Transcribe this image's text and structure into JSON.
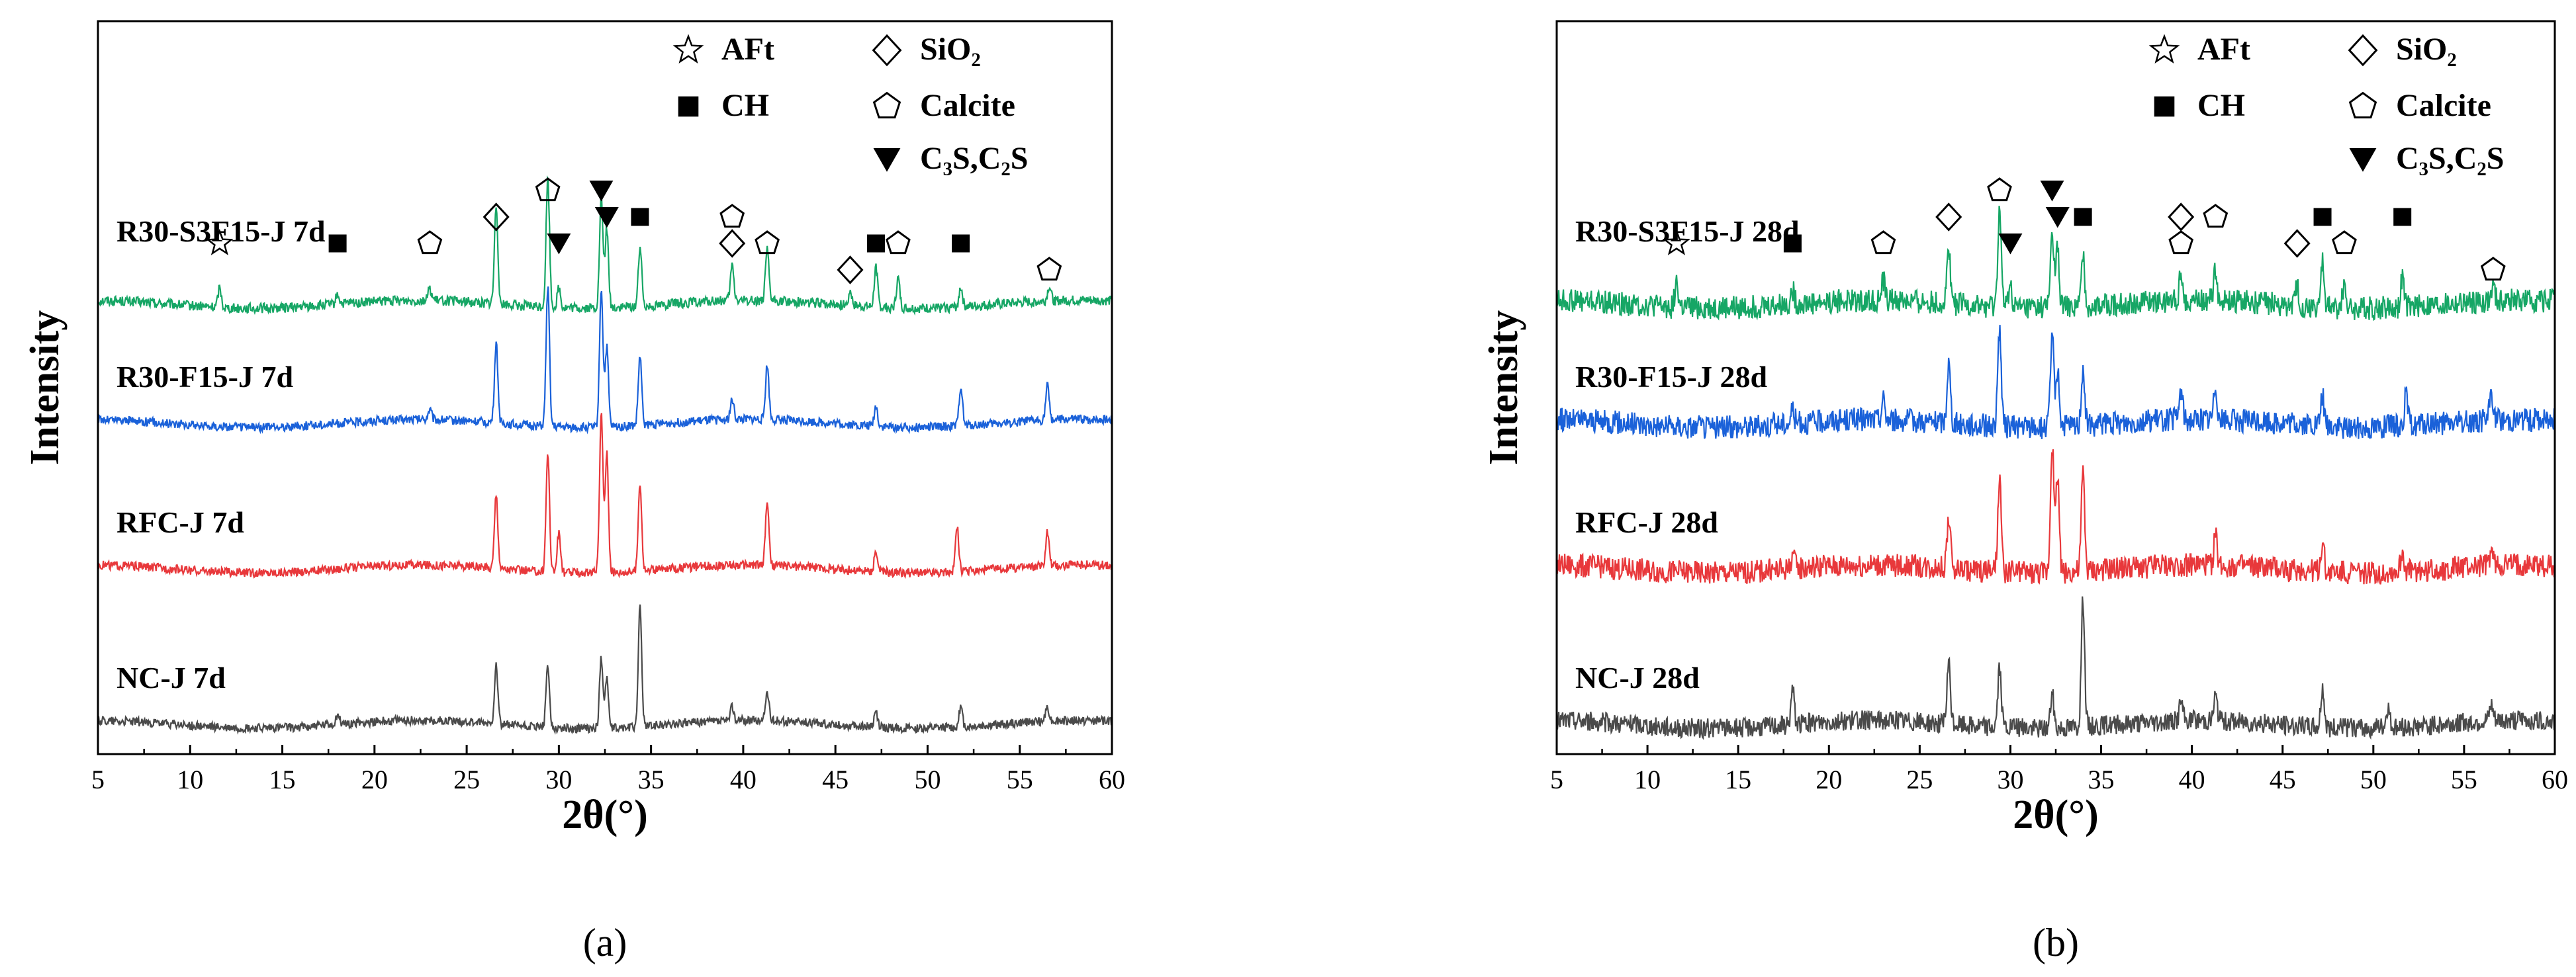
{
  "colors": {
    "green": "#16a665",
    "blue": "#1a61d9",
    "red": "#e8383b",
    "gray": "#4a4a4a",
    "axis": "#000000"
  },
  "chart_data": [
    {
      "type": "line",
      "panel_label": "(a)",
      "xlabel": "2θ(°)",
      "ylabel": "Intensity",
      "xlim": [
        5,
        60
      ],
      "xticks": [
        5,
        10,
        15,
        20,
        25,
        30,
        35,
        40,
        45,
        50,
        55,
        60
      ],
      "legend": {
        "placement": "top-right",
        "entries": [
          {
            "symbol": "star",
            "label": "AFt"
          },
          {
            "symbol": "diamond",
            "label": "SiO₂"
          },
          {
            "symbol": "square",
            "label": "CH"
          },
          {
            "symbol": "pentagon",
            "label": "Calcite"
          },
          {
            "symbol": "triangle",
            "label": "C₃S,C₂S"
          }
        ]
      },
      "series": [
        {
          "name": "R30-S3F15-J 7d",
          "color": "#16a665",
          "baseline": 3.6,
          "noise": 0.05,
          "peaks": [
            [
              11.6,
              0.2
            ],
            [
              18.0,
              0.1
            ],
            [
              23.0,
              0.12
            ],
            [
              26.6,
              1.0
            ],
            [
              29.4,
              1.3
            ],
            [
              30.0,
              0.2
            ],
            [
              32.3,
              1.1
            ],
            [
              32.6,
              0.8
            ],
            [
              34.4,
              0.6
            ],
            [
              39.4,
              0.35
            ],
            [
              41.3,
              0.5
            ],
            [
              45.8,
              0.15
            ],
            [
              47.2,
              0.4
            ],
            [
              48.4,
              0.3
            ],
            [
              51.8,
              0.2
            ],
            [
              56.6,
              0.15
            ]
          ],
          "markers": [
            {
              "symbol": "star",
              "x": 11.6,
              "level": 1
            },
            {
              "symbol": "square",
              "x": 18.0,
              "level": 1
            },
            {
              "symbol": "pentagon",
              "x": 23.0,
              "level": 1
            },
            {
              "symbol": "diamond",
              "x": 26.6,
              "level": 2
            },
            {
              "symbol": "pentagon",
              "x": 29.4,
              "level": 3
            },
            {
              "symbol": "triangle",
              "x": 30.0,
              "level": 1
            },
            {
              "symbol": "triangle",
              "x": 32.3,
              "level": 3
            },
            {
              "symbol": "triangle",
              "x": 32.6,
              "level": 2
            },
            {
              "symbol": "square",
              "x": 34.4,
              "level": 2
            },
            {
              "symbol": "pentagon",
              "x": 39.4,
              "level": 2
            },
            {
              "symbol": "diamond",
              "x": 39.4,
              "level": 1
            },
            {
              "symbol": "pentagon",
              "x": 41.3,
              "level": 1
            },
            {
              "symbol": "diamond",
              "x": 45.8,
              "level": 0
            },
            {
              "symbol": "square",
              "x": 47.2,
              "level": 1
            },
            {
              "symbol": "pentagon",
              "x": 48.4,
              "level": 1
            },
            {
              "symbol": "square",
              "x": 51.8,
              "level": 1
            },
            {
              "symbol": "pentagon",
              "x": 56.6,
              "level": 0
            }
          ]
        },
        {
          "name": "R30-F15-J 7d",
          "color": "#1a61d9",
          "baseline": 2.45,
          "noise": 0.045,
          "peaks": [
            [
              23.0,
              0.1
            ],
            [
              26.6,
              0.8
            ],
            [
              29.4,
              1.4
            ],
            [
              32.3,
              1.4
            ],
            [
              32.6,
              0.8
            ],
            [
              34.4,
              0.7
            ],
            [
              39.4,
              0.2
            ],
            [
              41.3,
              0.55
            ],
            [
              47.2,
              0.2
            ],
            [
              51.8,
              0.4
            ],
            [
              56.5,
              0.35
            ]
          ]
        },
        {
          "name": "RFC-J 7d",
          "color": "#e8383b",
          "baseline": 1.3,
          "noise": 0.045,
          "peaks": [
            [
              26.6,
              0.75
            ],
            [
              29.4,
              1.2
            ],
            [
              30.0,
              0.4
            ],
            [
              32.3,
              1.6
            ],
            [
              32.6,
              1.2
            ],
            [
              34.4,
              0.9
            ],
            [
              41.3,
              0.65
            ],
            [
              47.2,
              0.2
            ],
            [
              51.6,
              0.45
            ],
            [
              56.5,
              0.35
            ]
          ]
        },
        {
          "name": "NC-J 7d",
          "color": "#4a4a4a",
          "baseline": 0.0,
          "noise": 0.045,
          "peaks": [
            [
              18.0,
              0.1
            ],
            [
              26.6,
              0.6
            ],
            [
              29.4,
              0.6
            ],
            [
              32.3,
              0.7
            ],
            [
              32.6,
              0.5
            ],
            [
              34.4,
              1.2
            ],
            [
              39.4,
              0.15
            ],
            [
              41.3,
              0.3
            ],
            [
              47.2,
              0.15
            ],
            [
              51.8,
              0.2
            ],
            [
              56.5,
              0.15
            ]
          ]
        }
      ]
    },
    {
      "type": "line",
      "panel_label": "(b)",
      "xlabel": "2θ(°)",
      "ylabel": "Intensity",
      "xlim": [
        5,
        60
      ],
      "xticks": [
        5,
        10,
        15,
        20,
        25,
        30,
        35,
        40,
        45,
        50,
        55,
        60
      ],
      "legend": {
        "placement": "top-right",
        "entries": [
          {
            "symbol": "star",
            "label": "AFt"
          },
          {
            "symbol": "diamond",
            "label": "SiO₂"
          },
          {
            "symbol": "square",
            "label": "CH"
          },
          {
            "symbol": "pentagon",
            "label": "Calcite"
          },
          {
            "symbol": "triangle",
            "label": "C₃S,C₂S"
          }
        ]
      },
      "series": [
        {
          "name": "R30-S3F15-J 28d",
          "color": "#16a665",
          "baseline": 3.6,
          "noise": 0.12,
          "peaks": [
            [
              11.6,
              0.25
            ],
            [
              18.0,
              0.15
            ],
            [
              23.0,
              0.2
            ],
            [
              26.6,
              0.6
            ],
            [
              29.4,
              1.0
            ],
            [
              30.0,
              0.25
            ],
            [
              32.3,
              0.8
            ],
            [
              32.6,
              0.6
            ],
            [
              34.0,
              0.5
            ],
            [
              39.4,
              0.3
            ],
            [
              41.3,
              0.3
            ],
            [
              45.8,
              0.2
            ],
            [
              47.2,
              0.45
            ],
            [
              48.4,
              0.25
            ],
            [
              51.6,
              0.3
            ],
            [
              56.6,
              0.15
            ]
          ],
          "markers": [
            {
              "symbol": "star",
              "x": 11.6,
              "level": 1
            },
            {
              "symbol": "square",
              "x": 18.0,
              "level": 1
            },
            {
              "symbol": "pentagon",
              "x": 23.0,
              "level": 1
            },
            {
              "symbol": "diamond",
              "x": 26.6,
              "level": 2
            },
            {
              "symbol": "pentagon",
              "x": 29.4,
              "level": 3
            },
            {
              "symbol": "triangle",
              "x": 30.0,
              "level": 1
            },
            {
              "symbol": "triangle",
              "x": 32.3,
              "level": 3
            },
            {
              "symbol": "triangle",
              "x": 32.6,
              "level": 2
            },
            {
              "symbol": "square",
              "x": 34.0,
              "level": 2
            },
            {
              "symbol": "diamond",
              "x": 39.4,
              "level": 2
            },
            {
              "symbol": "pentagon",
              "x": 39.4,
              "level": 1
            },
            {
              "symbol": "pentagon",
              "x": 41.3,
              "level": 2
            },
            {
              "symbol": "diamond",
              "x": 45.8,
              "level": 1
            },
            {
              "symbol": "square",
              "x": 47.2,
              "level": 2
            },
            {
              "symbol": "pentagon",
              "x": 48.4,
              "level": 1
            },
            {
              "symbol": "square",
              "x": 51.6,
              "level": 2
            },
            {
              "symbol": "pentagon",
              "x": 56.6,
              "level": 0
            }
          ]
        },
        {
          "name": "R30-F15-J 28d",
          "color": "#1a61d9",
          "baseline": 2.4,
          "noise": 0.12,
          "peaks": [
            [
              18.0,
              0.15
            ],
            [
              23.0,
              0.2
            ],
            [
              26.6,
              0.6
            ],
            [
              29.4,
              1.0
            ],
            [
              32.3,
              0.9
            ],
            [
              32.6,
              0.6
            ],
            [
              34.0,
              0.6
            ],
            [
              39.4,
              0.3
            ],
            [
              41.3,
              0.35
            ],
            [
              47.2,
              0.3
            ],
            [
              51.8,
              0.3
            ],
            [
              56.5,
              0.3
            ]
          ]
        },
        {
          "name": "RFC-J 28d",
          "color": "#e8383b",
          "baseline": 1.25,
          "noise": 0.12,
          "peaks": [
            [
              18.0,
              0.15
            ],
            [
              26.6,
              0.5
            ],
            [
              29.4,
              0.9
            ],
            [
              32.3,
              1.3
            ],
            [
              32.6,
              1.0
            ],
            [
              34.0,
              1.0
            ],
            [
              41.3,
              0.3
            ],
            [
              47.2,
              0.3
            ],
            [
              51.6,
              0.2
            ],
            [
              56.5,
              0.15
            ]
          ]
        },
        {
          "name": "NC-J 28d",
          "color": "#4a4a4a",
          "baseline": 0.0,
          "noise": 0.1,
          "peaks": [
            [
              18.0,
              0.35
            ],
            [
              26.6,
              0.6
            ],
            [
              29.4,
              0.6
            ],
            [
              32.3,
              0.35
            ],
            [
              34.0,
              1.3
            ],
            [
              39.4,
              0.2
            ],
            [
              41.3,
              0.25
            ],
            [
              47.2,
              0.4
            ],
            [
              50.8,
              0.2
            ],
            [
              56.5,
              0.15
            ]
          ]
        }
      ]
    }
  ]
}
